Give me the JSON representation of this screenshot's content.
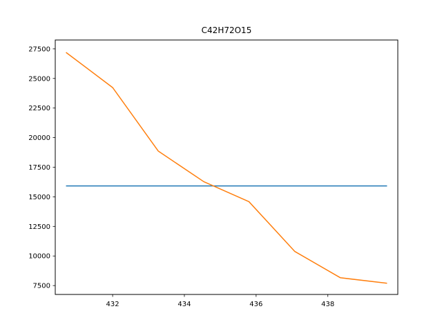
{
  "chart_data": {
    "type": "line",
    "title": "C42H72O15",
    "xlabel": "",
    "ylabel": "",
    "xlim": [
      430.4,
      439.95
    ],
    "ylim": [
      6750,
      28250
    ],
    "x_ticks": [
      432,
      434,
      436,
      438
    ],
    "y_ticks": [
      7500,
      10000,
      12500,
      15000,
      17500,
      20000,
      22500,
      25000,
      27500
    ],
    "grid": false,
    "series": [
      {
        "color": "#1f77b4",
        "x": [
          430.7,
          439.65
        ],
        "y": [
          15920,
          15920
        ]
      },
      {
        "color": "#ff7f0e",
        "x": [
          430.7,
          432.0,
          433.27,
          434.54,
          435.8,
          437.08,
          438.35,
          439.65
        ],
        "y": [
          27200,
          24230,
          18870,
          16280,
          14590,
          10380,
          8160,
          7700
        ]
      }
    ]
  }
}
